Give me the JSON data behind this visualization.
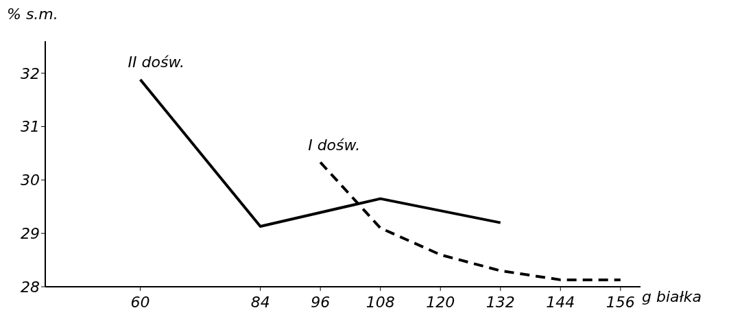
{
  "chart_data": {
    "type": "line",
    "ylabel": "% s.m.",
    "xlabel": "g białka",
    "xlim": [
      41,
      160
    ],
    "ylim": [
      28,
      32.6
    ],
    "xticks": [
      60,
      84,
      96,
      108,
      120,
      132,
      144,
      156
    ],
    "yticks": [
      28,
      29,
      30,
      31,
      32
    ],
    "grid": false,
    "legend": false,
    "marker": "none",
    "series": [
      {
        "name": "II dośw.",
        "color": "#000000",
        "line_style": "solid",
        "x": [
          60,
          84,
          108,
          132
        ],
        "values": [
          31.88,
          29.13,
          29.65,
          29.2
        ]
      },
      {
        "name": "I dośw.",
        "color": "#000000",
        "line_style": "dashed",
        "x": [
          96,
          108,
          120,
          132,
          144,
          156
        ],
        "values": [
          30.33,
          29.1,
          28.6,
          28.3,
          28.13,
          28.13
        ]
      }
    ]
  }
}
